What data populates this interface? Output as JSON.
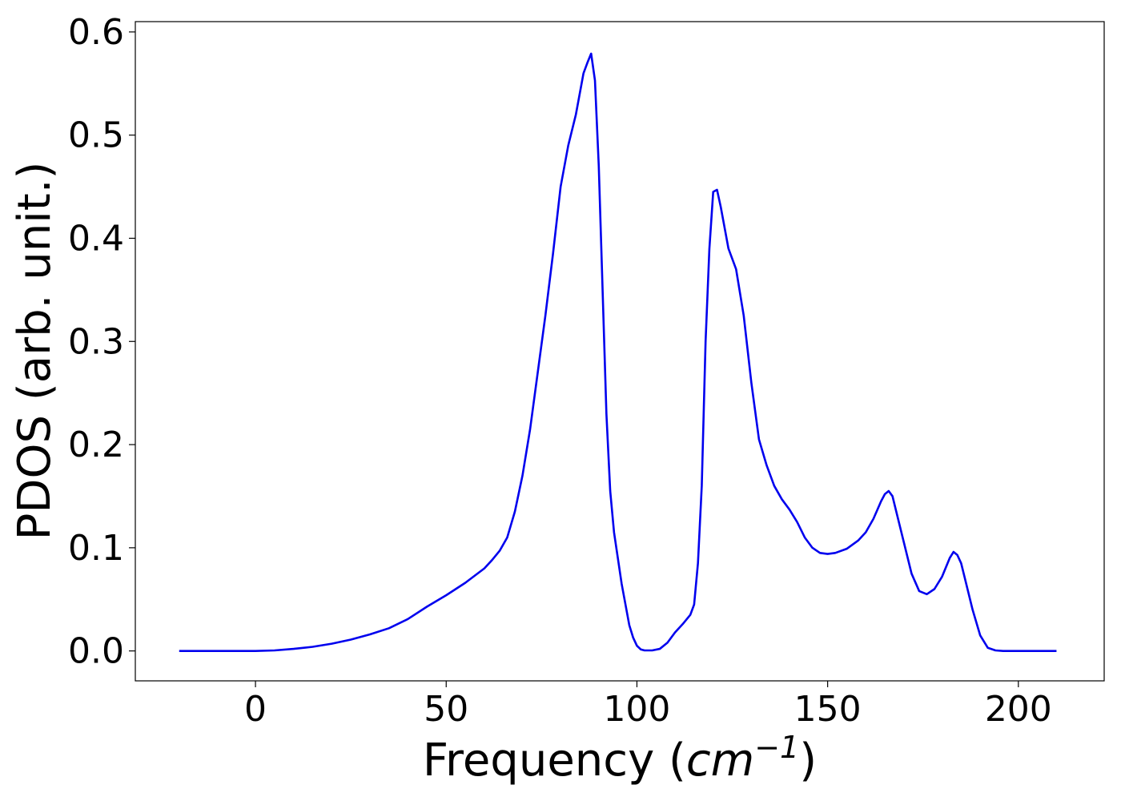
{
  "chart_data": {
    "type": "line",
    "title": "",
    "xlabel_prefix": "Frequency (",
    "xlabel_math_base": "cm",
    "xlabel_math_sup": "−1",
    "xlabel_suffix": ")",
    "ylabel": "PDOS (arb. unit.)",
    "xlim": [
      -31.5,
      222.5
    ],
    "ylim": [
      -0.029,
      0.61
    ],
    "xticks": [
      0,
      50,
      100,
      150,
      200
    ],
    "xtick_labels": [
      "0",
      "50",
      "100",
      "150",
      "200"
    ],
    "yticks": [
      0.0,
      0.1,
      0.2,
      0.3,
      0.4,
      0.5,
      0.6
    ],
    "ytick_labels": [
      "0.0",
      "0.1",
      "0.2",
      "0.3",
      "0.4",
      "0.5",
      "0.6"
    ],
    "grid": false,
    "legend": "none",
    "colors": {
      "line": "#0000ee",
      "axes": "#000000",
      "background": "#ffffff"
    },
    "series": [
      {
        "x": [
          -20,
          0,
          5,
          10,
          15,
          20,
          25,
          30,
          35,
          40,
          45,
          50,
          55,
          60,
          62,
          64,
          66,
          68,
          70,
          72,
          74,
          76,
          78,
          80,
          82,
          84,
          86,
          87,
          88,
          89,
          90,
          92,
          93,
          94,
          96,
          98,
          99,
          100,
          101,
          102,
          104,
          106,
          108,
          110,
          112,
          114,
          115,
          116,
          117,
          118,
          119,
          120,
          121,
          122,
          124,
          126,
          128,
          130,
          132,
          134,
          136,
          138,
          140,
          142,
          144,
          146,
          148,
          150,
          152,
          155,
          158,
          160,
          162,
          164,
          165,
          166,
          167,
          168,
          170,
          172,
          174,
          176,
          178,
          180,
          182,
          183,
          184,
          185,
          186,
          188,
          190,
          192,
          194,
          196,
          210
        ],
        "y": [
          0.0,
          0.0,
          0.0005,
          0.002,
          0.004,
          0.007,
          0.011,
          0.016,
          0.022,
          0.031,
          0.043,
          0.054,
          0.066,
          0.08,
          0.088,
          0.097,
          0.11,
          0.135,
          0.17,
          0.215,
          0.27,
          0.325,
          0.385,
          0.45,
          0.49,
          0.52,
          0.56,
          0.57,
          0.579,
          0.553,
          0.47,
          0.23,
          0.155,
          0.115,
          0.065,
          0.025,
          0.013,
          0.005,
          0.0015,
          0.0005,
          0.0005,
          0.002,
          0.008,
          0.018,
          0.026,
          0.035,
          0.045,
          0.085,
          0.16,
          0.3,
          0.39,
          0.445,
          0.447,
          0.43,
          0.39,
          0.37,
          0.325,
          0.26,
          0.205,
          0.18,
          0.16,
          0.147,
          0.137,
          0.125,
          0.11,
          0.1,
          0.095,
          0.094,
          0.095,
          0.099,
          0.107,
          0.115,
          0.128,
          0.145,
          0.152,
          0.155,
          0.15,
          0.135,
          0.105,
          0.075,
          0.058,
          0.055,
          0.06,
          0.072,
          0.09,
          0.096,
          0.093,
          0.085,
          0.07,
          0.04,
          0.015,
          0.003,
          0.0005,
          0.0,
          0.0
        ]
      }
    ]
  }
}
